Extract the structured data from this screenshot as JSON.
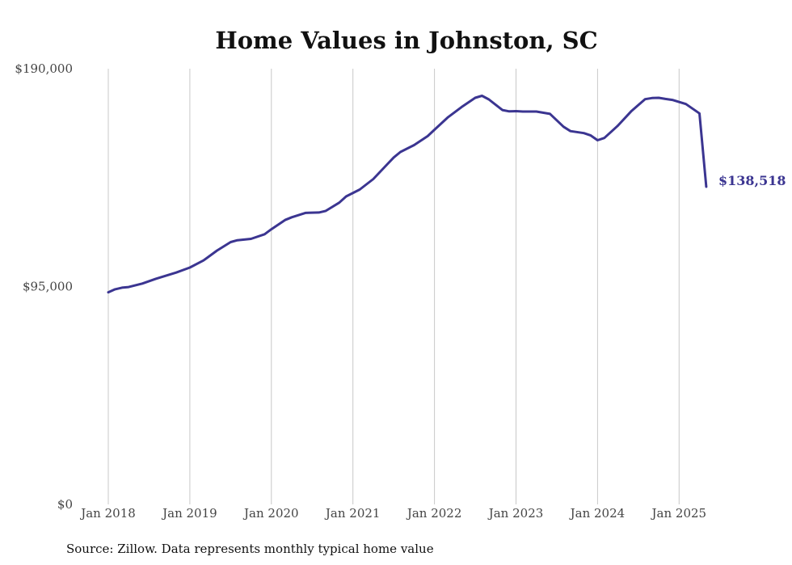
{
  "chart_data": {
    "type": "line",
    "title": "Home Values in Johnston, SC",
    "source": "Source: Zillow. Data represents monthly typical home value",
    "xlabel": "",
    "ylabel": "",
    "ylim": [
      0,
      190000
    ],
    "y_ticks": [
      {
        "value": 0,
        "label": "$0"
      },
      {
        "value": 95000,
        "label": "$95,000"
      },
      {
        "value": 190000,
        "label": "$190,000"
      }
    ],
    "x_ticks": [
      {
        "value": 2018.0,
        "label": "Jan 2018"
      },
      {
        "value": 2019.0,
        "label": "Jan 2019"
      },
      {
        "value": 2020.0,
        "label": "Jan 2020"
      },
      {
        "value": 2021.0,
        "label": "Jan 2021"
      },
      {
        "value": 2022.0,
        "label": "Jan 2022"
      },
      {
        "value": 2023.0,
        "label": "Jan 2023"
      },
      {
        "value": 2024.0,
        "label": "Jan 2024"
      },
      {
        "value": 2025.0,
        "label": "Jan 2025"
      }
    ],
    "xlim": [
      2018.0,
      2025.4
    ],
    "grid": "vertical",
    "line_color": "#3b3591",
    "end_label": "$138,518",
    "series": [
      {
        "x": [
          2018.0,
          2018.083,
          2018.167,
          2018.25,
          2018.417,
          2018.583,
          2018.667,
          2018.833,
          2019.0,
          2019.167,
          2019.333,
          2019.5,
          2019.583,
          2019.75,
          2019.917,
          2020.0,
          2020.167,
          2020.25,
          2020.417,
          2020.583,
          2020.667,
          2020.833,
          2020.917,
          2021.083,
          2021.25,
          2021.417,
          2021.5,
          2021.583,
          2021.75,
          2021.917,
          2022.0,
          2022.167,
          2022.333,
          2022.5,
          2022.583,
          2022.667,
          2022.833,
          2022.917,
          2023.0,
          2023.083,
          2023.25,
          2023.417,
          2023.583,
          2023.667,
          2023.833,
          2023.917,
          2024.0,
          2024.083,
          2024.25,
          2024.417,
          2024.583,
          2024.667,
          2024.75,
          2024.833,
          2024.917,
          2025.083,
          2025.25,
          2025.333
        ],
        "y": [
          92500,
          93800,
          94500,
          94800,
          96300,
          98400,
          99300,
          101100,
          103300,
          106400,
          110700,
          114400,
          115200,
          115800,
          117800,
          120000,
          124000,
          125200,
          127100,
          127300,
          128000,
          131600,
          134300,
          137300,
          141900,
          148200,
          151300,
          153700,
          156700,
          160600,
          163400,
          168900,
          173300,
          177300,
          178200,
          176600,
          172000,
          171400,
          171500,
          171300,
          171300,
          170300,
          164700,
          162800,
          161900,
          160900,
          158800,
          159800,
          165200,
          171600,
          176700,
          177200,
          177300,
          176800,
          176400,
          174600,
          170500,
          138518
        ]
      }
    ]
  }
}
